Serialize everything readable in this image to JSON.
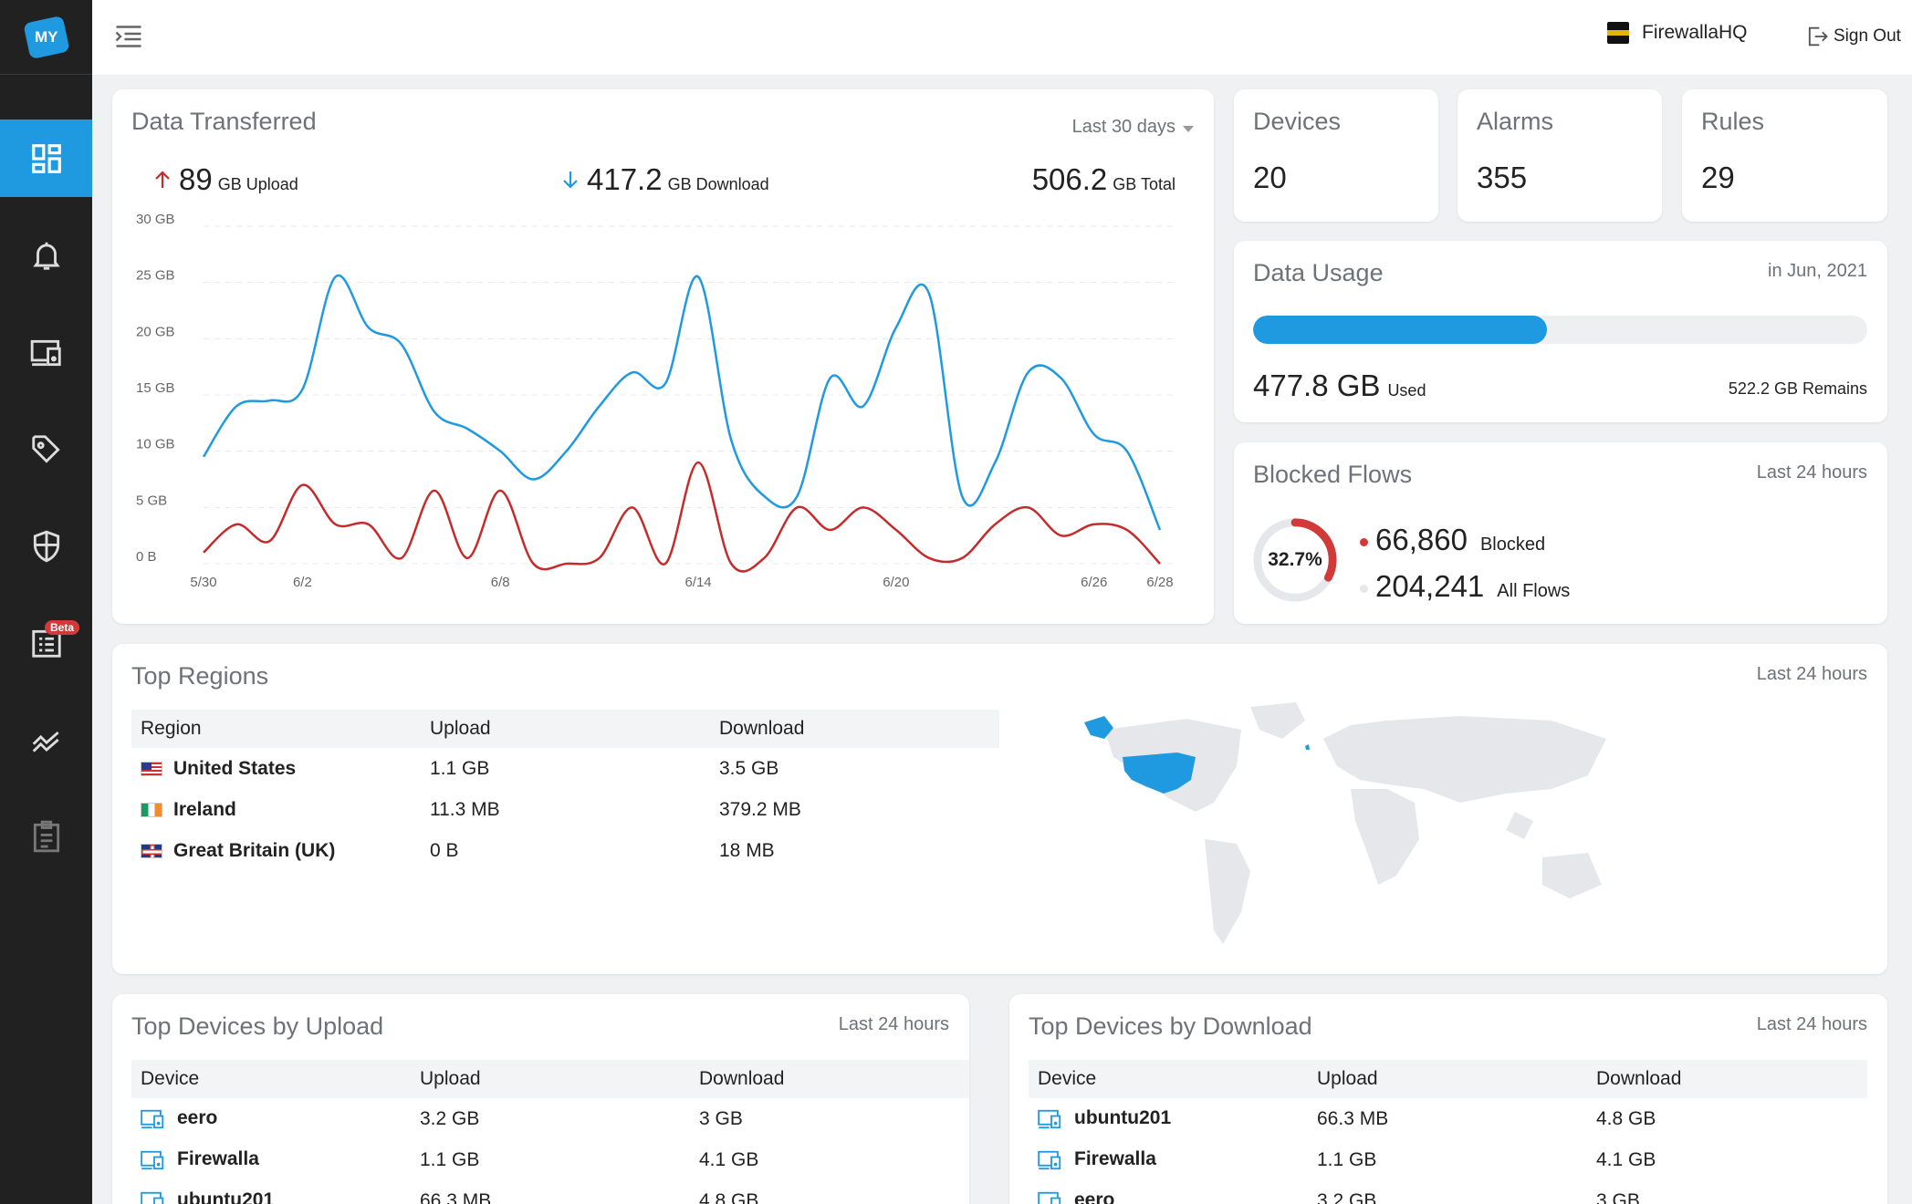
{
  "header": {
    "org_name": "FirewallaHQ",
    "sign_out": "Sign Out"
  },
  "sidebar": {
    "logo": "MY",
    "items": [
      {
        "name": "dashboard-icon",
        "active": true
      },
      {
        "name": "bell-icon"
      },
      {
        "name": "devices-icon"
      },
      {
        "name": "tag-icon"
      },
      {
        "name": "shield-icon"
      },
      {
        "name": "flows-icon",
        "badge": "Beta"
      },
      {
        "name": "trends-icon"
      },
      {
        "name": "clipboard-icon"
      }
    ]
  },
  "transfer": {
    "title": "Data Transferred",
    "range": "Last 30 days",
    "upload_value": "89",
    "upload_unit": "GB Upload",
    "download_value": "417.2",
    "download_unit": "GB Download",
    "total_value": "506.2",
    "total_unit": "GB Total"
  },
  "chart_data": {
    "type": "line",
    "title": "",
    "x_ticks": [
      "5/30",
      "6/2",
      "6/8",
      "6/14",
      "6/20",
      "6/26",
      "6/28"
    ],
    "x_tick_days": [
      0,
      3,
      9,
      15,
      21,
      27,
      29
    ],
    "y_ticks": [
      "30 GB",
      "25 GB",
      "20 GB",
      "15 GB",
      "10 GB",
      "5 GB",
      "0 B"
    ],
    "ylim": [
      0,
      30
    ],
    "series": [
      {
        "color": "#1f9ae0",
        "values": [
          9.5,
          14,
          14.5,
          15.5,
          25.5,
          21,
          19.5,
          13.5,
          12,
          10,
          7.5,
          10,
          14,
          17,
          16,
          25.5,
          11,
          6,
          6,
          16.5,
          14,
          21,
          24,
          6,
          9,
          17,
          16.5,
          11.5,
          10,
          3
        ]
      },
      {
        "color": "#c62b2b",
        "values": [
          1,
          3.5,
          2,
          7,
          3.5,
          3.5,
          0.5,
          6.5,
          0.5,
          6.5,
          0,
          0,
          0.5,
          5,
          0,
          9,
          0,
          0.5,
          5,
          3,
          5,
          3,
          0.5,
          0.5,
          3.5,
          5,
          2.5,
          3.5,
          3,
          0
        ]
      }
    ]
  },
  "stats": {
    "devices": {
      "label": "Devices",
      "value": "20"
    },
    "alarms": {
      "label": "Alarms",
      "value": "355"
    },
    "rules": {
      "label": "Rules",
      "value": "29"
    }
  },
  "usage": {
    "title": "Data Usage",
    "period": "in Jun, 2021",
    "used_value": "477.8 GB",
    "used_label": "Used",
    "remains": "522.2 GB Remains",
    "used_fraction": 0.478
  },
  "blocked": {
    "title": "Blocked Flows",
    "period": "Last 24 hours",
    "percent_label": "32.7%",
    "percent": 0.327,
    "blocked_value": "66,860",
    "blocked_label": "Blocked",
    "all_value": "204,241",
    "all_label": "All Flows",
    "blocked_color": "#d23a3a",
    "all_color": "#e6e7ea"
  },
  "regions": {
    "title": "Top Regions",
    "period": "Last 24 hours",
    "headers": [
      "Region",
      "Upload",
      "Download"
    ],
    "rows": [
      {
        "name": "United States",
        "flag": "us",
        "upload": "1.1 GB",
        "download": "3.5 GB"
      },
      {
        "name": "Ireland",
        "flag": "ie",
        "upload": "11.3 MB",
        "download": "379.2 MB"
      },
      {
        "name": "Great Britain (UK)",
        "flag": "gb",
        "upload": "0 B",
        "download": "18 MB"
      }
    ]
  },
  "top_upload": {
    "title": "Top Devices by Upload",
    "period": "Last 24 hours",
    "headers": [
      "Device",
      "Upload",
      "Download"
    ],
    "rows": [
      {
        "name": "eero",
        "upload": "3.2 GB",
        "download": "3 GB"
      },
      {
        "name": "Firewalla",
        "upload": "1.1 GB",
        "download": "4.1 GB"
      },
      {
        "name": "ubuntu201",
        "upload": "66.3 MB",
        "download": "4.8 GB"
      }
    ]
  },
  "top_download": {
    "title": "Top Devices by Download",
    "period": "Last 24 hours",
    "headers": [
      "Device",
      "Upload",
      "Download"
    ],
    "rows": [
      {
        "name": "ubuntu201",
        "upload": "66.3 MB",
        "download": "4.8 GB"
      },
      {
        "name": "Firewalla",
        "upload": "1.1 GB",
        "download": "4.1 GB"
      },
      {
        "name": "eero",
        "upload": "3.2 GB",
        "download": "3 GB"
      }
    ]
  }
}
